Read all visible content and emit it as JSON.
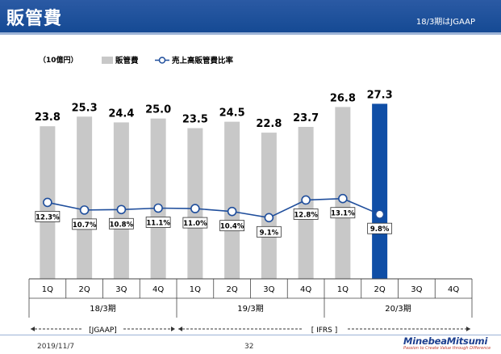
{
  "header": {
    "title": "販管費",
    "note": "18/3期はJGAAP"
  },
  "unit_label": "（10億円）",
  "chart_data": {
    "type": "bar",
    "categories": [
      "1Q",
      "2Q",
      "3Q",
      "4Q",
      "1Q",
      "2Q",
      "3Q",
      "4Q",
      "1Q",
      "2Q",
      "3Q",
      "4Q"
    ],
    "groups": [
      {
        "label": "18/3期",
        "from": 0,
        "to": 3
      },
      {
        "label": "19/3期",
        "from": 4,
        "to": 7
      },
      {
        "label": "20/3期",
        "from": 8,
        "to": 11
      }
    ],
    "series": [
      {
        "name": "販管費",
        "kind": "bar",
        "values": [
          23.8,
          25.3,
          24.4,
          25.0,
          23.5,
          24.5,
          22.8,
          23.7,
          26.8,
          27.3,
          null,
          null
        ],
        "labels": [
          "23.8",
          "25.3",
          "24.4",
          "25.0",
          "23.5",
          "24.5",
          "22.8",
          "23.7",
          "26.8",
          "27.3",
          "",
          ""
        ],
        "highlight_index": 9
      },
      {
        "name": "売上高販管費比率",
        "kind": "line",
        "values": [
          12.3,
          10.7,
          10.8,
          11.1,
          11.0,
          10.4,
          9.1,
          12.8,
          13.1,
          9.8,
          null,
          null
        ],
        "labels": [
          "12.3%",
          "10.7%",
          "10.8%",
          "11.1%",
          "11.0%",
          "10.4%",
          "9.1%",
          "12.8%",
          "13.1%",
          "9.8%",
          "",
          ""
        ]
      }
    ],
    "standards": [
      {
        "label": "[JGAAP]",
        "from": 0,
        "to": 3
      },
      {
        "label": "[ IFRS ]",
        "from": 4,
        "to": 11
      }
    ],
    "colors": {
      "bar": "#c8c8c8",
      "highlight": "#0f4ea6",
      "line": "#1f4e9c"
    },
    "ylim": [
      0,
      30
    ],
    "ratio_lim": [
      0,
      40
    ]
  },
  "footer": {
    "date": "2019/11/7",
    "page": "32",
    "logo_name": "MinebeaMitsumi",
    "logo_tagline": "Passion to Create Value through Difference"
  }
}
